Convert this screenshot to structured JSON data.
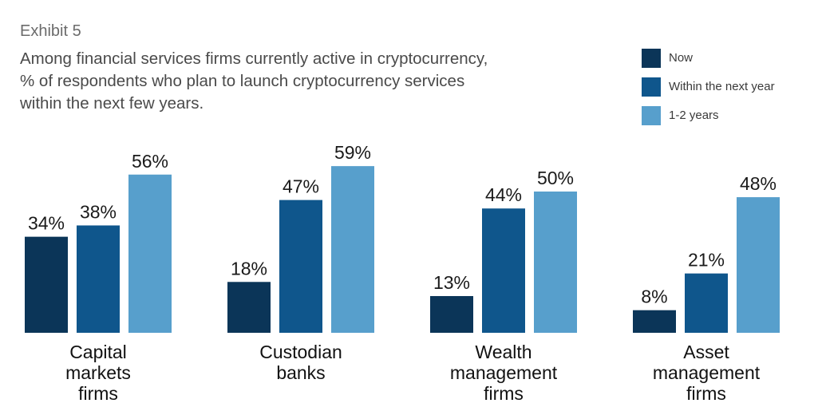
{
  "header": {
    "exhibit": "Exhibit 5",
    "title_lines": [
      "Among financial services firms currently active in cryptocurrency,",
      "% of respondents who plan to launch cryptocurrency services",
      "within the next few years."
    ]
  },
  "chart_data": {
    "type": "bar",
    "categories": [
      [
        "Capital",
        "markets",
        "firms"
      ],
      [
        "Custodian",
        "banks"
      ],
      [
        "Wealth",
        "management",
        "firms"
      ],
      [
        "Asset",
        "management",
        "firms"
      ]
    ],
    "series": [
      {
        "name": "Now",
        "color": "#0b3558",
        "values": [
          34,
          18,
          13,
          8
        ],
        "labels": [
          "34%",
          "18%",
          "13%",
          "8%"
        ]
      },
      {
        "name": "Within the next year",
        "color": "#0f568c",
        "values": [
          38,
          47,
          44,
          21
        ],
        "labels": [
          "38%",
          "47%",
          "44%",
          "21%"
        ]
      },
      {
        "name": "1-2 years",
        "color": "#579fcc",
        "values": [
          56,
          59,
          50,
          48
        ],
        "labels": [
          "56%",
          "59%",
          "50%",
          "48%"
        ]
      }
    ],
    "value_format": "percent",
    "ylim": [
      0,
      60
    ],
    "grid": false,
    "legend_position": "top-right"
  }
}
